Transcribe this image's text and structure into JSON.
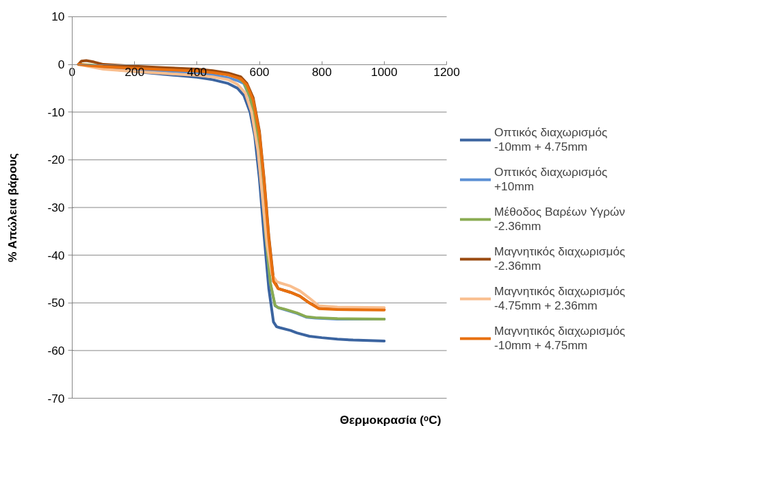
{
  "chart_data": {
    "type": "line",
    "xlabel": "Θερμοκρασία (ᵒC)",
    "ylabel": "% Απώλεια βάρους",
    "xlim": [
      0,
      1200
    ],
    "xticks": [
      0,
      200,
      400,
      600,
      800,
      1000,
      1200
    ],
    "ylim": [
      -70,
      10
    ],
    "yticks": [
      -70,
      -60,
      -50,
      -40,
      -30,
      -20,
      -10,
      0,
      10
    ],
    "grid": "y",
    "legend": "right",
    "marker": "none",
    "line_style": "solid",
    "series": [
      {
        "name": "Οπτικός διαχωρισμός -10mm + 4.75mm",
        "color": "#3b64a0",
        "x": [
          100,
          200,
          300,
          400,
          450,
          500,
          530,
          550,
          570,
          585,
          600,
          615,
          630,
          645,
          655,
          665,
          700,
          720,
          760,
          800,
          850,
          900,
          950,
          1000
        ],
        "values": [
          -0.8,
          -1.5,
          -2.1,
          -2.7,
          -3.2,
          -4,
          -5,
          -6.5,
          -10,
          -15,
          -24,
          -36,
          -47,
          -54,
          -55,
          -55.2,
          -55.8,
          -56.3,
          -57,
          -57.3,
          -57.6,
          -57.8,
          -57.9,
          -58
        ]
      },
      {
        "name": "Οπτικός διαχωρισμός +10mm",
        "color": "#5b8fd4",
        "x": [
          100,
          200,
          300,
          400,
          450,
          500,
          530,
          550,
          570,
          590,
          605,
          620,
          635,
          650,
          660,
          680,
          720,
          750,
          780,
          850,
          1000
        ],
        "values": [
          -0.6,
          -1.0,
          -1.4,
          -1.8,
          -2.2,
          -2.8,
          -3.4,
          -4,
          -7,
          -14,
          -24,
          -36,
          -46,
          -50.6,
          -51,
          -51.4,
          -52.2,
          -53,
          -53.2,
          -53.4,
          -53.4
        ]
      },
      {
        "name": "Μέθοδος Βαρέων Υγρών -2.36mm",
        "color": "#8aab52",
        "x": [
          20,
          50,
          100,
          200,
          300,
          400,
          450,
          500,
          530,
          550,
          570,
          590,
          605,
          620,
          635,
          650,
          660,
          680,
          720,
          750,
          780,
          850,
          1000
        ],
        "values": [
          0,
          -0.1,
          -0.3,
          -0.5,
          -0.8,
          -1.1,
          -1.4,
          -2,
          -2.7,
          -3.8,
          -6.8,
          -13.5,
          -23.5,
          -35.5,
          -45.8,
          -50.5,
          -51,
          -51.3,
          -52.1,
          -52.9,
          -53.1,
          -53.3,
          -53.4
        ]
      },
      {
        "name": "Μαγνητικός διαχωρισμός -2.36mm",
        "color": "#9a4a10",
        "x": [
          20,
          30,
          45,
          70,
          100,
          200,
          300,
          400,
          450,
          500,
          540,
          560,
          580,
          600,
          615,
          630,
          645,
          660,
          700,
          730,
          760,
          790,
          850,
          1000
        ],
        "values": [
          0,
          0.7,
          0.8,
          0.5,
          0,
          -0.4,
          -0.7,
          -1,
          -1.3,
          -1.8,
          -2.6,
          -4,
          -7,
          -14,
          -24,
          -36,
          -45,
          -47,
          -47.8,
          -48.6,
          -50,
          -51.1,
          -51.3,
          -51.4
        ]
      },
      {
        "name": "Μαγνητικός διαχωρισμός -4.75mm + 2.36mm",
        "color": "#f9be8e",
        "x": [
          20,
          50,
          100,
          200,
          300,
          400,
          450,
          500,
          530,
          555,
          575,
          595,
          610,
          625,
          640,
          655,
          665,
          700,
          730,
          760,
          790,
          850,
          1000
        ],
        "values": [
          0,
          -0.4,
          -1,
          -1.5,
          -1.9,
          -2.3,
          -2.6,
          -3.2,
          -4.2,
          -6,
          -10,
          -18,
          -28,
          -38,
          -44,
          -45.5,
          -45.8,
          -46.5,
          -47.5,
          -49,
          -50.6,
          -50.9,
          -51
        ]
      },
      {
        "name": "Μαγνητικός διαχωρισμός -10mm + 4.75mm",
        "color": "#e8700f",
        "x": [
          20,
          50,
          100,
          200,
          300,
          400,
          450,
          500,
          540,
          560,
          580,
          600,
          615,
          630,
          645,
          660,
          700,
          730,
          760,
          790,
          850,
          1000
        ],
        "values": [
          0,
          -0.2,
          -0.5,
          -0.8,
          -1.1,
          -1.4,
          -1.7,
          -2.2,
          -3,
          -4.3,
          -7.5,
          -14.5,
          -24.5,
          -36.5,
          -45.5,
          -47,
          -47.8,
          -48.6,
          -50,
          -51.2,
          -51.4,
          -51.5
        ]
      }
    ]
  }
}
